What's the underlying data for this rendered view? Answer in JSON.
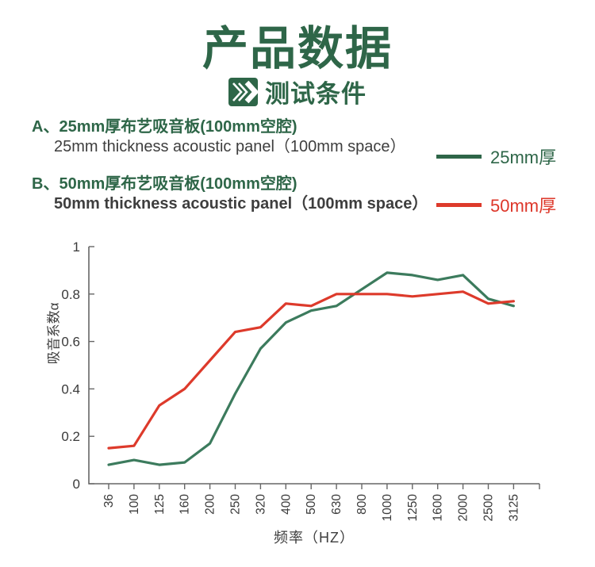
{
  "header": {
    "title": "产品数据",
    "subtitle": "测试条件"
  },
  "specs": [
    {
      "label": "A",
      "title_cn": "A、25mm厚布艺吸音板(100mm空腔)",
      "title_en": "25mm thickness acoustic panel（100mm space）"
    },
    {
      "label": "B",
      "title_cn": "B、50mm厚布艺吸音板(100mm空腔)",
      "title_en": "50mm thickness acoustic panel（100mm space）"
    }
  ],
  "legend": [
    {
      "label": "25mm厚",
      "color": "#2e6648"
    },
    {
      "label": "50mm厚",
      "color": "#dd372a"
    }
  ],
  "colors": {
    "brand_green": "#2e6648",
    "line_green": "#3c7b5d",
    "line_red": "#dd3a2b",
    "axis": "#666666",
    "tick_text": "#3a3a3a"
  },
  "chart_data": {
    "type": "line",
    "title": "",
    "xlabel": "频率（HZ）",
    "ylabel": "吸音系数α",
    "categories": [
      "36",
      "100",
      "125",
      "160",
      "200",
      "250",
      "320",
      "400",
      "500",
      "630",
      "800",
      "1000",
      "1250",
      "1600",
      "2000",
      "2500",
      "3125"
    ],
    "series": [
      {
        "name": "25mm厚",
        "color": "#3c7b5d",
        "values": [
          0.08,
          0.1,
          0.08,
          0.09,
          0.17,
          0.38,
          0.57,
          0.68,
          0.73,
          0.75,
          0.82,
          0.89,
          0.88,
          0.86,
          0.88,
          0.78,
          0.75
        ]
      },
      {
        "name": "50mm厚",
        "color": "#dd3a2b",
        "values": [
          0.15,
          0.16,
          0.33,
          0.4,
          0.52,
          0.64,
          0.66,
          0.76,
          0.75,
          0.8,
          0.8,
          0.8,
          0.79,
          0.8,
          0.81,
          0.76,
          0.77
        ]
      }
    ],
    "ylim": [
      0,
      1
    ],
    "yticks": [
      0,
      0.2,
      0.4,
      0.6,
      0.8,
      1
    ],
    "grid": false,
    "legend_position": "top-right"
  }
}
